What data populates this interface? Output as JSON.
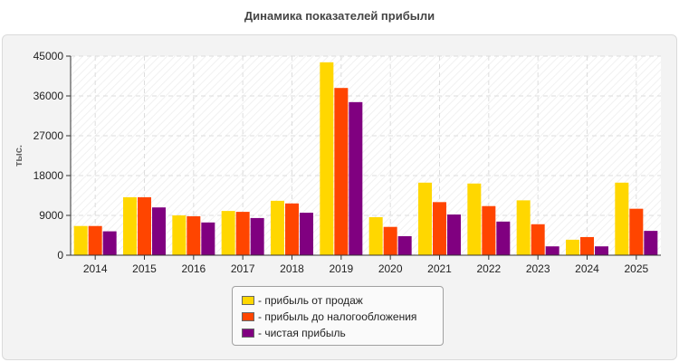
{
  "chart_data": {
    "type": "bar",
    "title": "Динамика показателей прибыли",
    "ylabel": "тыс.",
    "xlabel": "",
    "ylim": [
      0,
      45000
    ],
    "yticks": [
      "0",
      "9000",
      "18000",
      "27000",
      "36000",
      "45000"
    ],
    "grid": true,
    "legend_position": "bottom",
    "categories": [
      "2014",
      "2015",
      "2016",
      "2017",
      "2018",
      "2019",
      "2020",
      "2021",
      "2022",
      "2023",
      "2024",
      "2025"
    ],
    "series": [
      {
        "name": "- прибыль от продаж",
        "color": "#ffd700",
        "values": [
          6600,
          13100,
          9000,
          10000,
          12300,
          43600,
          8600,
          16400,
          16200,
          12400,
          3500,
          16400
        ]
      },
      {
        "name": "- прибыль до налогообложения",
        "color": "#ff4500",
        "values": [
          6600,
          13100,
          8800,
          9800,
          11700,
          37800,
          6400,
          12000,
          11100,
          7000,
          4100,
          10500
        ]
      },
      {
        "name": "- чистая прибыль",
        "color": "#800080",
        "values": [
          5400,
          10800,
          7400,
          8400,
          9600,
          34600,
          4300,
          9200,
          7600,
          2000,
          2000,
          5500
        ]
      }
    ]
  }
}
